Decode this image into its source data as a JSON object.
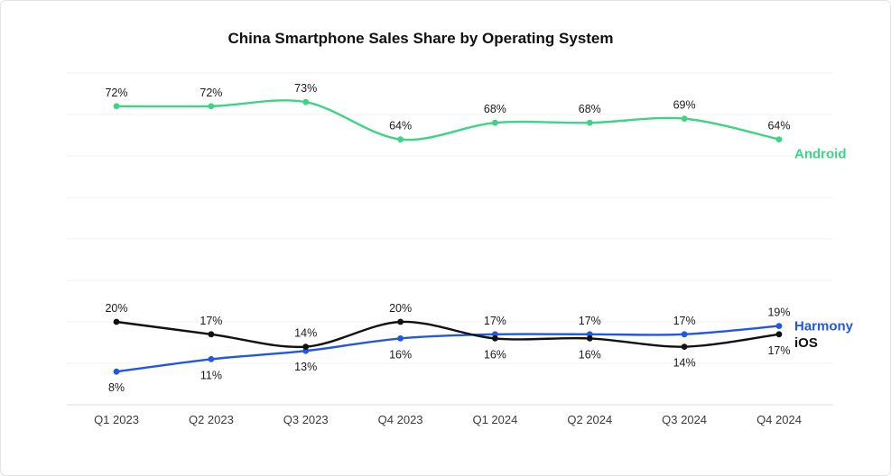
{
  "chart_data": {
    "type": "line",
    "title": "China Smartphone Sales Share by Operating System",
    "categories": [
      "Q1 2023",
      "Q2 2023",
      "Q3 2023",
      "Q4 2023",
      "Q1 2024",
      "Q2 2024",
      "Q3 2024",
      "Q4 2024"
    ],
    "series": [
      {
        "name": "Android",
        "color": "#3ed487",
        "values": [
          72,
          72,
          73,
          64,
          68,
          68,
          69,
          64
        ],
        "label_side": [
          "above",
          "above",
          "above",
          "above",
          "above",
          "above",
          "above",
          "above"
        ],
        "end_label_dy": 21
      },
      {
        "name": "Harmony",
        "color": "#2257e0",
        "values": [
          8,
          11,
          13,
          16,
          17,
          17,
          17,
          19
        ],
        "label_side": [
          "below",
          "below",
          "below",
          "below",
          "above",
          "above",
          "above",
          "above"
        ],
        "end_label_dy": 5
      },
      {
        "name": "iOS",
        "color": "#111111",
        "values": [
          20,
          17,
          14,
          20,
          16,
          16,
          14,
          17
        ],
        "label_side": [
          "above",
          "above",
          "above",
          "above",
          "below",
          "below",
          "below",
          "below"
        ],
        "end_label_dy": 14
      }
    ],
    "ylim": [
      0,
      80
    ],
    "grid": "horizontal",
    "xlabel": "",
    "ylabel": "",
    "legend_position": "right-inline"
  },
  "colors": {
    "background": "#ffffff",
    "border": "#e3e3e3",
    "grid": "#f2f2f2",
    "axis": "#dcdcdc",
    "value_label": "#1b1b1b",
    "tick_label": "#3a3a3a"
  }
}
